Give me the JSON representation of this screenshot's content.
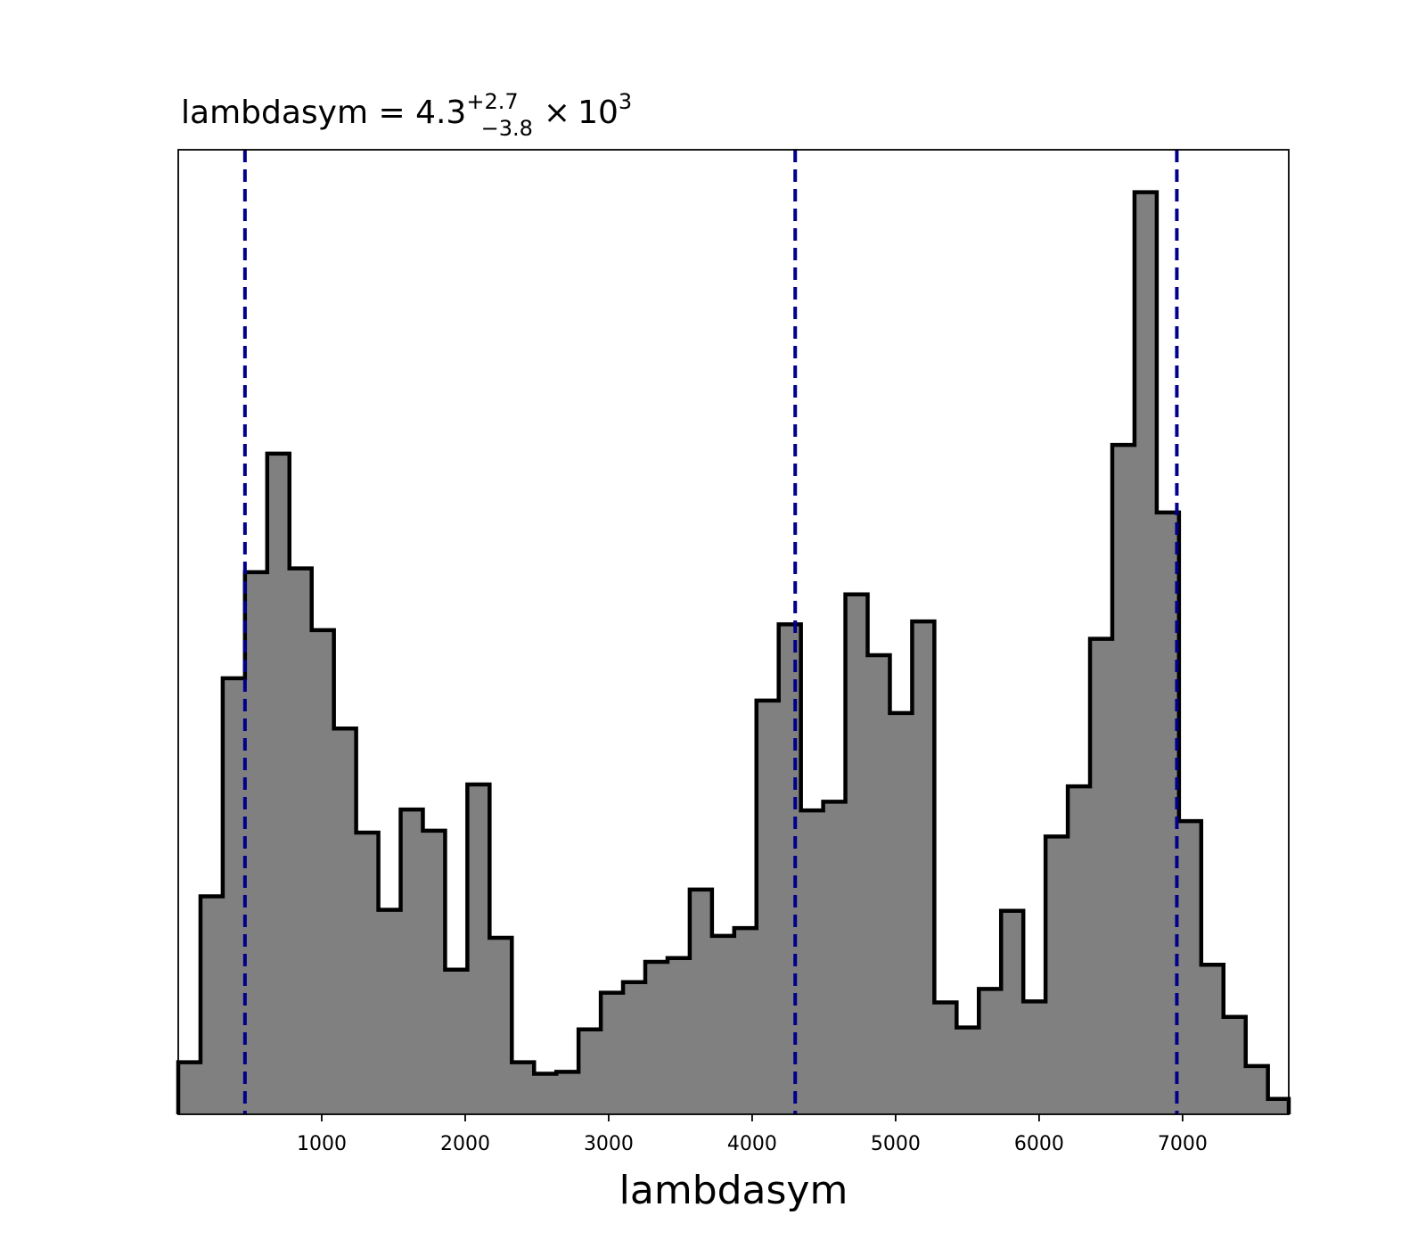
{
  "chart_data": {
    "type": "histogram",
    "title": {
      "prefix": "lambdasym = 4.3",
      "superscript": "+2.7",
      "subscript": "−3.8",
      "times": "×",
      "base": "10",
      "exponent": "3"
    },
    "xlabel": "lambdasym",
    "ylabel": "",
    "xlim": [
      0,
      7740
    ],
    "ylim": [
      0,
      1.0
    ],
    "y_ticks_shown": false,
    "grid": false,
    "x_ticks": [
      1000,
      2000,
      3000,
      4000,
      5000,
      6000,
      7000
    ],
    "x_tick_labels": [
      "1000",
      "2000",
      "3000",
      "4000",
      "5000",
      "6000",
      "7000"
    ],
    "bin_width": 155,
    "bin_starts": [
      0,
      155,
      310,
      465,
      620,
      775,
      930,
      1085,
      1240,
      1395,
      1550,
      1705,
      1860,
      2015,
      2170,
      2325,
      2480,
      2635,
      2790,
      2945,
      3100,
      3255,
      3410,
      3565,
      3720,
      3875,
      4030,
      4185,
      4340,
      4495,
      4650,
      4805,
      4960,
      5115,
      5270,
      5425,
      5580,
      5735,
      5890,
      6045,
      6200,
      6355,
      6510,
      6665,
      6820,
      6975,
      7130,
      7285,
      7440,
      7595
    ],
    "values": [
      0.054,
      0.226,
      0.452,
      0.562,
      0.685,
      0.566,
      0.502,
      0.4,
      0.292,
      0.212,
      0.316,
      0.294,
      0.15,
      0.342,
      0.183,
      0.054,
      0.042,
      0.044,
      0.088,
      0.126,
      0.137,
      0.158,
      0.162,
      0.233,
      0.185,
      0.193,
      0.429,
      0.508,
      0.315,
      0.324,
      0.539,
      0.476,
      0.416,
      0.511,
      0.116,
      0.09,
      0.13,
      0.211,
      0.117,
      0.288,
      0.34,
      0.493,
      0.694,
      0.956,
      0.624,
      0.304,
      0.155,
      0.101,
      0.05,
      0.016
    ],
    "fill_color": "#808080",
    "edge_color": "#000000",
    "quantile_lines": {
      "values": [
        465,
        4300,
        6960
      ],
      "color": "#00008b",
      "style": "dashed"
    }
  }
}
